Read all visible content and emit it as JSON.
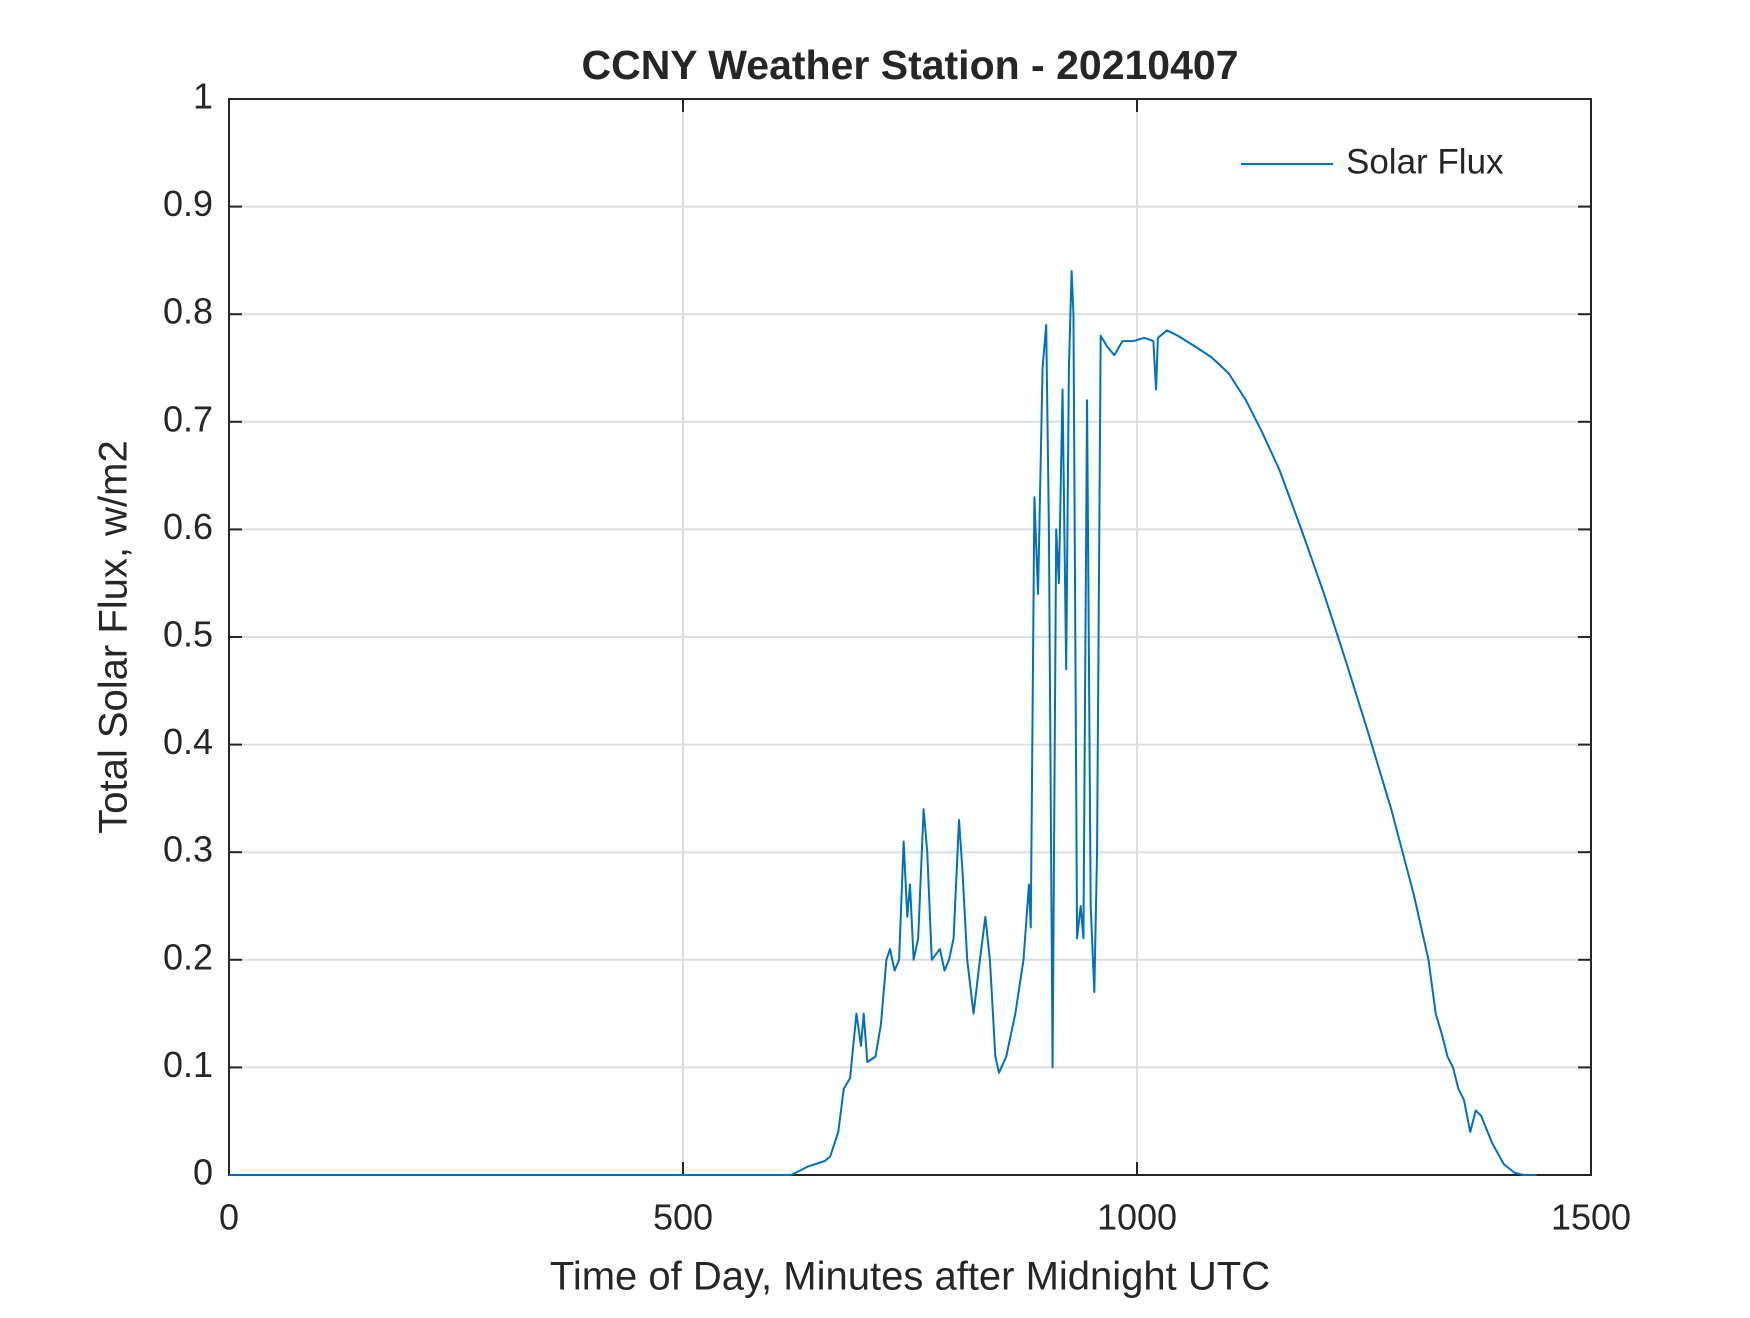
{
  "chart_data": {
    "type": "line",
    "title": "CCNY Weather Station - 20210407",
    "x_label": "Time of Day, Minutes after Midnight UTC",
    "y_label": "Total Solar Flux, w/m2",
    "xlim": [
      0,
      1500
    ],
    "xticks": [
      0,
      500,
      1000,
      1500
    ],
    "ylim": [
      0,
      1
    ],
    "yticks": [
      0,
      0.1,
      0.2,
      0.3,
      0.4,
      0.5,
      0.6,
      0.7,
      0.8,
      0.9,
      1
    ],
    "grid": true,
    "legend": "upper-right",
    "series": [
      {
        "name": "Solar Flux",
        "color": "#0072bd",
        "x": [
          0,
          619,
          638,
          656,
          662,
          671,
          677,
          684,
          691,
          696,
          699,
          703,
          712,
          718,
          724,
          728,
          733,
          738,
          743,
          747,
          750,
          754,
          759,
          765,
          769,
          774,
          783,
          788,
          793,
          798,
          804,
          808,
          813,
          820,
          827,
          833,
          838,
          844,
          848,
          856,
          866,
          875,
          881,
          883,
          887,
          891,
          896,
          900,
          903,
          907,
          911,
          914,
          918,
          922,
          925,
          928,
          930,
          934,
          938,
          941,
          945,
          949,
          953,
          956,
          960,
          967,
          975,
          984,
          996,
          1008,
          1018,
          1021,
          1023,
          1033,
          1045,
          1064,
          1082,
          1101,
          1120,
          1138,
          1157,
          1181,
          1206,
          1231,
          1255,
          1280,
          1305,
          1321,
          1329,
          1336,
          1342,
          1348,
          1354,
          1360,
          1367,
          1373,
          1379,
          1391,
          1404,
          1416,
          1426,
          1440
        ],
        "values": [
          0,
          0,
          0.008,
          0.013,
          0.017,
          0.04,
          0.08,
          0.09,
          0.15,
          0.12,
          0.15,
          0.105,
          0.11,
          0.14,
          0.2,
          0.21,
          0.19,
          0.2,
          0.31,
          0.24,
          0.27,
          0.2,
          0.22,
          0.34,
          0.3,
          0.2,
          0.21,
          0.19,
          0.2,
          0.22,
          0.33,
          0.28,
          0.2,
          0.15,
          0.2,
          0.24,
          0.2,
          0.11,
          0.095,
          0.11,
          0.15,
          0.2,
          0.27,
          0.23,
          0.63,
          0.54,
          0.75,
          0.79,
          0.6,
          0.1,
          0.6,
          0.55,
          0.73,
          0.47,
          0.75,
          0.84,
          0.8,
          0.22,
          0.25,
          0.22,
          0.72,
          0.25,
          0.17,
          0.3,
          0.78,
          0.77,
          0.762,
          0.775,
          0.775,
          0.778,
          0.775,
          0.73,
          0.778,
          0.785,
          0.78,
          0.77,
          0.76,
          0.745,
          0.72,
          0.69,
          0.655,
          0.6,
          0.54,
          0.475,
          0.41,
          0.34,
          0.26,
          0.2,
          0.15,
          0.13,
          0.11,
          0.1,
          0.08,
          0.07,
          0.04,
          0.06,
          0.055,
          0.03,
          0.01,
          0.002,
          0,
          0
        ]
      }
    ]
  }
}
